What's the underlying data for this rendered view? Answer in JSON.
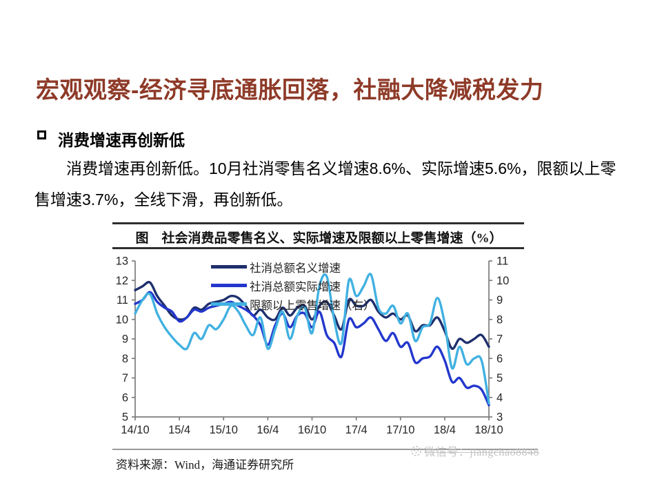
{
  "slide": {
    "title": "宏观观察-经济寻底通胀回落，社融大降减税发力",
    "section_heading": "消费增速再创新低",
    "paragraph": "消费增速再创新低。10月社消零售名义增速8.6%、实际增速5.6%，限额以上零售增速3.7%，全线下滑，再创新低。"
  },
  "chart": {
    "title": "图　社会消费品零售名义、实际增速及限额以上零售增速（%）",
    "source": "资料来源：Wind，海通证券研究所",
    "watermark": "微信号：jiangchao8848",
    "wechat_icon": "wechat-face-icon"
  },
  "chart_data": {
    "type": "line",
    "title": "图 社会消费品零售名义、实际增速及限额以上零售增速（%）",
    "x_unit": "month",
    "x_start": "2014/10",
    "x_end": "2018/10",
    "x_tick_labels": [
      "14/10",
      "15/4",
      "15/10",
      "16/4",
      "16/10",
      "17/4",
      "17/10",
      "18/4",
      "18/10"
    ],
    "x_tick_interval_months": 6,
    "left_axis": {
      "min": 5,
      "max": 13,
      "ticks": [
        13,
        12,
        11,
        10,
        9,
        8,
        7,
        6,
        5
      ]
    },
    "right_axis": {
      "min": 3,
      "max": 11,
      "ticks": [
        11,
        10,
        9,
        8,
        7,
        6,
        5,
        4,
        3
      ]
    },
    "grid": false,
    "legend_position": "top-left",
    "axis_color": "#7b7b7b",
    "series": [
      {
        "name": "社消总额名义增速",
        "axis": "left",
        "color": "#1e2f6d",
        "values": [
          11.5,
          11.7,
          11.9,
          11.2,
          10.7,
          10.2,
          10.0,
          10.1,
          10.6,
          10.5,
          10.8,
          10.9,
          11.0,
          11.2,
          11.1,
          10.7,
          10.2,
          10.5,
          10.1,
          10.0,
          10.6,
          10.2,
          10.6,
          10.7,
          10.0,
          10.7,
          10.9,
          10.2,
          9.5,
          11.0,
          10.7,
          10.7,
          11.0,
          10.4,
          10.1,
          10.3,
          10.0,
          10.2,
          9.4,
          9.7,
          9.7,
          10.1,
          9.4,
          8.5,
          9.0,
          8.8,
          9.0,
          9.2,
          8.6
        ]
      },
      {
        "name": "社消总额实际增速",
        "axis": "left",
        "color": "#2337cc",
        "values": [
          10.8,
          11.0,
          11.4,
          10.9,
          10.6,
          10.4,
          9.9,
          10.1,
          10.5,
          10.4,
          10.6,
          10.7,
          10.8,
          10.9,
          10.7,
          10.5,
          10.2,
          9.7,
          8.7,
          9.7,
          10.3,
          9.6,
          10.2,
          10.3,
          9.6,
          10.4,
          9.2,
          8.8,
          8.1,
          10.0,
          9.6,
          9.8,
          10.1,
          9.5,
          8.9,
          9.3,
          8.6,
          8.8,
          7.8,
          8.0,
          8.1,
          8.6,
          7.9,
          6.8,
          7.0,
          6.5,
          6.6,
          6.4,
          5.6
        ]
      },
      {
        "name": "限额以上零售增速（右）",
        "axis": "right",
        "color": "#41b1e1",
        "values": [
          8.3,
          9.0,
          9.3,
          8.3,
          7.6,
          7.1,
          6.7,
          6.5,
          7.3,
          7.0,
          7.7,
          7.5,
          8.0,
          8.7,
          8.4,
          7.7,
          7.2,
          8.1,
          6.5,
          7.5,
          8.4,
          7.0,
          8.2,
          8.6,
          7.3,
          9.7,
          10.2,
          8.0,
          6.8,
          10.0,
          9.2,
          9.7,
          10.3,
          8.6,
          8.3,
          8.7,
          7.8,
          8.3,
          6.9,
          7.6,
          7.8,
          9.1,
          7.8,
          5.5,
          6.6,
          5.7,
          6.0,
          5.9,
          3.7
        ]
      }
    ]
  }
}
